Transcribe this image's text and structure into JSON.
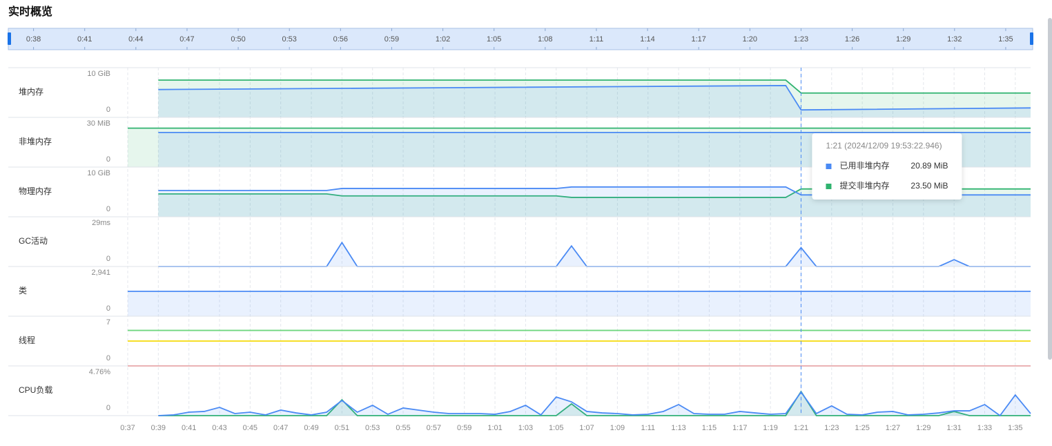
{
  "header": {
    "title": "实时概览"
  },
  "slider": {
    "xlim": [
      36.6,
      96.5
    ],
    "ticks": [
      {
        "value": 38,
        "label": "0:38"
      },
      {
        "value": 41,
        "label": "0:41"
      },
      {
        "value": 44,
        "label": "0:44"
      },
      {
        "value": 47,
        "label": "0:47"
      },
      {
        "value": 50,
        "label": "0:50"
      },
      {
        "value": 53,
        "label": "0:53"
      },
      {
        "value": 56,
        "label": "0:56"
      },
      {
        "value": 59,
        "label": "0:59"
      },
      {
        "value": 62,
        "label": "1:02"
      },
      {
        "value": 65,
        "label": "1:05"
      },
      {
        "value": 68,
        "label": "1:08"
      },
      {
        "value": 71,
        "label": "1:11"
      },
      {
        "value": 74,
        "label": "1:14"
      },
      {
        "value": 77,
        "label": "1:17"
      },
      {
        "value": 80,
        "label": "1:20"
      },
      {
        "value": 83,
        "label": "1:23"
      },
      {
        "value": 86,
        "label": "1:26"
      },
      {
        "value": 89,
        "label": "1:29"
      },
      {
        "value": 92,
        "label": "1:32"
      },
      {
        "value": 95,
        "label": "1:35"
      }
    ]
  },
  "chart_data": [
    {
      "type": "line",
      "title": "堆内存",
      "area": true,
      "xlim": [
        37,
        96
      ],
      "ylim": [
        0,
        10
      ],
      "yticks": [
        0,
        {
          "value": 10,
          "label": "10 GiB"
        }
      ],
      "x": [
        39,
        80,
        81,
        96
      ],
      "series": [
        {
          "color": "#2fb36f",
          "values": [
            7.5,
            7.5,
            4.9,
            4.9
          ]
        },
        {
          "color": "#4a8af4",
          "values": [
            5.6,
            6.4,
            1.5,
            1.9
          ]
        }
      ]
    },
    {
      "type": "line",
      "title": "非堆内存",
      "area": true,
      "xlim": [
        37,
        96
      ],
      "ylim": [
        0,
        30
      ],
      "yticks": [
        0,
        {
          "value": 30,
          "label": "30 MiB"
        }
      ],
      "x": [
        37,
        39,
        81,
        96
      ],
      "series": [
        {
          "name": "提交非堆内存",
          "color": "#2fb36f",
          "values": [
            23.5,
            23.5,
            23.5,
            23.5
          ]
        },
        {
          "name": "已用非堆内存",
          "color": "#4a8af4",
          "values": [
            null,
            20.89,
            20.89,
            20.89
          ]
        }
      ]
    },
    {
      "type": "line",
      "title": "物理内存",
      "area": true,
      "xlim": [
        37,
        96
      ],
      "ylim": [
        0,
        10
      ],
      "yticks": [
        0,
        {
          "value": 10,
          "label": "10 GiB"
        }
      ],
      "x": [
        39,
        50,
        51,
        65,
        66,
        80,
        81,
        96
      ],
      "series": [
        {
          "color": "#2fb36f",
          "values": [
            4.6,
            4.6,
            4.2,
            4.2,
            3.9,
            3.9,
            5.6,
            5.6
          ]
        },
        {
          "color": "#4a8af4",
          "values": [
            5.3,
            5.3,
            5.7,
            5.7,
            6.0,
            6.0,
            4.4,
            4.4
          ]
        }
      ]
    },
    {
      "type": "line",
      "title": "GC活动",
      "area": true,
      "xlim": [
        37,
        96
      ],
      "ylim": [
        0,
        29
      ],
      "yticks": [
        0,
        {
          "value": 29,
          "label": "29ms"
        }
      ],
      "x": [
        39,
        50,
        51,
        52,
        65,
        66,
        67,
        80,
        81,
        82,
        90,
        91,
        92,
        96
      ],
      "series": [
        {
          "color": "#4a8af4",
          "values": [
            0,
            0,
            14,
            0,
            0,
            12,
            0,
            0,
            11,
            0,
            0,
            4,
            0,
            0
          ]
        }
      ]
    },
    {
      "type": "line",
      "title": "类",
      "area": true,
      "xlim": [
        37,
        96
      ],
      "ylim": [
        0,
        2941
      ],
      "yticks": [
        0,
        {
          "value": 2941,
          "label": "2,941"
        }
      ],
      "x": [
        37,
        96
      ],
      "series": [
        {
          "color": "#4a8af4",
          "values": [
            1470,
            1470
          ]
        }
      ]
    },
    {
      "type": "line",
      "title": "线程",
      "area": false,
      "xlim": [
        37,
        96
      ],
      "ylim": [
        0,
        7
      ],
      "yticks": [
        0,
        7
      ],
      "x": [
        37,
        96
      ],
      "series": [
        {
          "color": "#6fd67f",
          "values": [
            5,
            5
          ]
        },
        {
          "color": "#f5d90a",
          "values": [
            3.5,
            3.5
          ]
        },
        {
          "color": "#f05656",
          "values": [
            0,
            0
          ]
        }
      ]
    },
    {
      "type": "line",
      "title": "CPU负载",
      "area": true,
      "xlim": [
        37,
        96
      ],
      "ylim": [
        0,
        4.76
      ],
      "yticks": [
        0,
        {
          "value": 4.76,
          "label": "4.76%"
        }
      ],
      "xticks": [
        {
          "value": 37,
          "label": "0:37"
        },
        {
          "value": 39,
          "label": "0:39"
        },
        {
          "value": 41,
          "label": "0:41"
        },
        {
          "value": 43,
          "label": "0:43"
        },
        {
          "value": 45,
          "label": "0:45"
        },
        {
          "value": 47,
          "label": "0:47"
        },
        {
          "value": 49,
          "label": "0:49"
        },
        {
          "value": 51,
          "label": "0:51"
        },
        {
          "value": 53,
          "label": "0:53"
        },
        {
          "value": 55,
          "label": "0:55"
        },
        {
          "value": 57,
          "label": "0:57"
        },
        {
          "value": 59,
          "label": "0:59"
        },
        {
          "value": 61,
          "label": "1:01"
        },
        {
          "value": 63,
          "label": "1:03"
        },
        {
          "value": 65,
          "label": "1:05"
        },
        {
          "value": 67,
          "label": "1:07"
        },
        {
          "value": 69,
          "label": "1:09"
        },
        {
          "value": 71,
          "label": "1:11"
        },
        {
          "value": 73,
          "label": "1:13"
        },
        {
          "value": 75,
          "label": "1:15"
        },
        {
          "value": 77,
          "label": "1:17"
        },
        {
          "value": 79,
          "label": "1:19"
        },
        {
          "value": 81,
          "label": "1:21"
        },
        {
          "value": 83,
          "label": "1:23"
        },
        {
          "value": 85,
          "label": "1:25"
        },
        {
          "value": 87,
          "label": "1:27"
        },
        {
          "value": 89,
          "label": "1:29"
        },
        {
          "value": 91,
          "label": "1:31"
        },
        {
          "value": 93,
          "label": "1:33"
        },
        {
          "value": 95,
          "label": "1:35"
        }
      ],
      "x": [
        39,
        40,
        41,
        42,
        43,
        44,
        45,
        46,
        47,
        48,
        49,
        50,
        51,
        52,
        53,
        54,
        55,
        56,
        57,
        58,
        59,
        60,
        61,
        62,
        63,
        64,
        65,
        66,
        67,
        68,
        69,
        70,
        71,
        72,
        73,
        74,
        75,
        76,
        77,
        78,
        79,
        80,
        81,
        82,
        83,
        84,
        85,
        86,
        87,
        88,
        89,
        90,
        91,
        92,
        93,
        94,
        95,
        96
      ],
      "series": [
        {
          "color": "#2fb36f",
          "values": [
            0,
            0,
            0,
            0,
            0,
            0,
            0,
            0,
            0,
            0,
            0,
            0,
            1.52,
            0,
            0,
            0,
            0,
            0,
            0,
            0,
            0,
            0,
            0,
            0,
            0,
            0,
            0,
            1.12,
            0,
            0,
            0,
            0,
            0,
            0,
            0,
            0,
            0,
            0,
            0,
            0,
            0,
            0,
            2.31,
            0,
            0,
            0,
            0,
            0,
            0,
            0,
            0,
            0,
            0.4,
            0,
            0,
            0,
            0,
            0
          ]
        },
        {
          "color": "#4a8af4",
          "values": [
            0,
            0.07,
            0.33,
            0.4,
            0.79,
            0.2,
            0.33,
            0.07,
            0.53,
            0.26,
            0.07,
            0.33,
            1.45,
            0.33,
            0.99,
            0.13,
            0.73,
            0.53,
            0.33,
            0.2,
            0.2,
            0.2,
            0.13,
            0.4,
            0.99,
            0.07,
            1.78,
            1.32,
            0.4,
            0.26,
            0.2,
            0.07,
            0.13,
            0.4,
            1.06,
            0.2,
            0.13,
            0.13,
            0.4,
            0.26,
            0.13,
            0.2,
            2.25,
            0.2,
            0.93,
            0.13,
            0.07,
            0.33,
            0.4,
            0.07,
            0.13,
            0.26,
            0.46,
            0.46,
            1.06,
            0,
            1.98,
            0.2
          ]
        }
      ]
    }
  ],
  "tooltip": {
    "x": 81,
    "chart": 1,
    "title": "1:21 (2024/12/09 19:53:22.946)",
    "items": [
      {
        "series": 1,
        "value": 20.89,
        "label": "20.89 MiB"
      },
      {
        "series": 0,
        "value": 23.5,
        "label": "23.50 MiB"
      }
    ]
  }
}
